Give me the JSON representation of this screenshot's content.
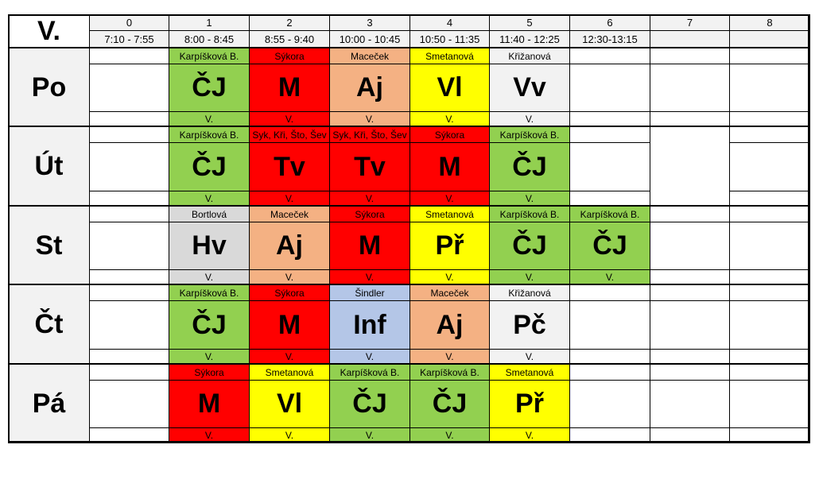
{
  "class_label": "V.",
  "periods": [
    {
      "num": "0",
      "time": "7:10 - 7:55"
    },
    {
      "num": "1",
      "time": "8:00 - 8:45"
    },
    {
      "num": "2",
      "time": "8:55 - 9:40"
    },
    {
      "num": "3",
      "time": "10:00 - 10:45"
    },
    {
      "num": "4",
      "time": "10:50 - 11:35"
    },
    {
      "num": "5",
      "time": "11:40 - 12:25"
    },
    {
      "num": "6",
      "time": "12:30-13:15"
    },
    {
      "num": "7",
      "time": ""
    },
    {
      "num": "8",
      "time": ""
    }
  ],
  "colors": {
    "green": "#92d050",
    "red": "#ff0000",
    "salmon": "#f4b183",
    "yellow": "#ffff00",
    "lightgrey": "#f2f2f2",
    "grey": "#d9d9d9",
    "blue": "#b4c6e7"
  },
  "days": [
    {
      "name": "Po",
      "lessons": [
        null,
        {
          "teacher": "Karpíšková B.",
          "subject": "ČJ",
          "room": "V.",
          "color": "green"
        },
        {
          "teacher": "Sýkora",
          "subject": "M",
          "room": "V.",
          "color": "red"
        },
        {
          "teacher": "Maceček",
          "subject": "Aj",
          "room": "V.",
          "color": "salmon"
        },
        {
          "teacher": "Smetanová",
          "subject": "Vl",
          "room": "V.",
          "color": "yellow"
        },
        {
          "teacher": "Křižanová",
          "subject": "Vv",
          "room": "V.",
          "color": "lightgrey"
        },
        null,
        null,
        null
      ]
    },
    {
      "name": "Út",
      "lessons": [
        null,
        {
          "teacher": "Karpíšková B.",
          "subject": "ČJ",
          "room": "V.",
          "color": "green"
        },
        {
          "teacher": "Syk, Kři, Što, Šev",
          "subject": "Tv",
          "room": "V.",
          "color": "red"
        },
        {
          "teacher": "Syk, Kři, Što, Šev",
          "subject": "Tv",
          "room": "V.",
          "color": "red"
        },
        {
          "teacher": "Sýkora",
          "subject": "M",
          "room": "V.",
          "color": "red"
        },
        {
          "teacher": "Karpíšková B.",
          "subject": "ČJ",
          "room": "V.",
          "color": "green"
        },
        null,
        null,
        null
      ]
    },
    {
      "name": "St",
      "lessons": [
        null,
        {
          "teacher": "Bortlová",
          "subject": "Hv",
          "room": "V.",
          "color": "grey"
        },
        {
          "teacher": "Maceček",
          "subject": "Aj",
          "room": "V.",
          "color": "salmon"
        },
        {
          "teacher": "Sýkora",
          "subject": "M",
          "room": "V.",
          "color": "red"
        },
        {
          "teacher": "Smetanová",
          "subject": "Př",
          "room": "V.",
          "color": "yellow"
        },
        {
          "teacher": "Karpíšková B.",
          "subject": "ČJ",
          "room": "V.",
          "color": "green"
        },
        {
          "teacher": "Karpíšková B.",
          "subject": "ČJ",
          "room": "V.",
          "color": "green"
        },
        null,
        null
      ]
    },
    {
      "name": "Čt",
      "lessons": [
        null,
        {
          "teacher": "Karpíšková B.",
          "subject": "ČJ",
          "room": "V.",
          "color": "green"
        },
        {
          "teacher": "Sýkora",
          "subject": "M",
          "room": "V.",
          "color": "red"
        },
        {
          "teacher": "Šindler",
          "subject": "Inf",
          "room": "V.",
          "color": "blue"
        },
        {
          "teacher": "Maceček",
          "subject": "Aj",
          "room": "V.",
          "color": "salmon"
        },
        {
          "teacher": "Křižanová",
          "subject": "Pč",
          "room": "V.",
          "color": "lightgrey"
        },
        null,
        null,
        null
      ]
    },
    {
      "name": "Pá",
      "lessons": [
        null,
        {
          "teacher": "Sýkora",
          "subject": "M",
          "room": "V.",
          "color": "red"
        },
        {
          "teacher": "Smetanová",
          "subject": "Vl",
          "room": "V.",
          "color": "yellow"
        },
        {
          "teacher": "Karpíšková B.",
          "subject": "ČJ",
          "room": "V.",
          "color": "green"
        },
        {
          "teacher": "Karpíšková B.",
          "subject": "ČJ",
          "room": "V.",
          "color": "green"
        },
        {
          "teacher": "Smetanová",
          "subject": "Př",
          "room": "V.",
          "color": "yellow"
        },
        null,
        null,
        null
      ]
    }
  ]
}
